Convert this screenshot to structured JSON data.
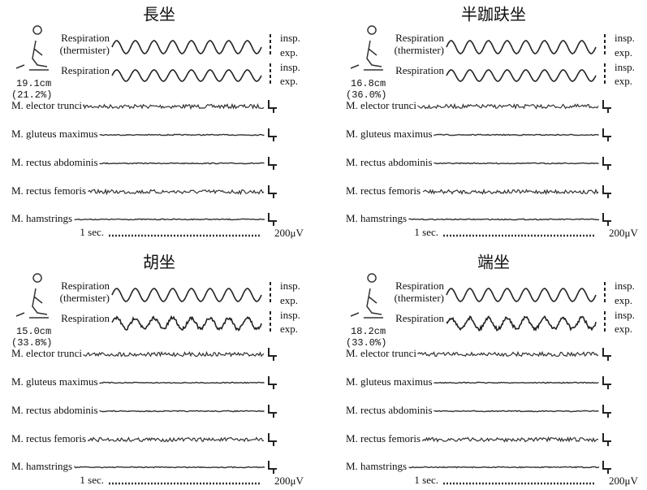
{
  "panels": [
    {
      "title": "長坐",
      "respiration_thermister": [
        "Respiration",
        "(thermister)"
      ],
      "respiration": "Respiration",
      "phase_labels": [
        [
          "insp.",
          "exp."
        ],
        [
          "insp.",
          "exp."
        ]
      ],
      "height": "19.1cm",
      "percent": "(21.2%)",
      "muscles": [
        "M. elector trunci",
        "M. gluteus maximus",
        "M. rectus abdominis",
        "M. rectus femoris",
        "M. hamstrings"
      ],
      "time_scale": "1 sec.",
      "amplitude_scale": "200μV"
    },
    {
      "title": "半跏趺坐",
      "respiration_thermister": [
        "Respiration",
        "(thermister)"
      ],
      "respiration": "Respiration",
      "phase_labels": [
        [
          "insp.",
          "exp."
        ],
        [
          "insp.",
          "exp."
        ]
      ],
      "height": "16.8cm",
      "percent": "(36.0%)",
      "muscles": [
        "M. elector trunci",
        "M. gluteus maximus",
        "M. rectus abdominis",
        "M. rectus femoris",
        "M. hamstrings"
      ],
      "time_scale": "1 sec.",
      "amplitude_scale": "200μV"
    },
    {
      "title": "胡坐",
      "respiration_thermister": [
        "Respiration",
        "(thermister)"
      ],
      "respiration": "Respiration",
      "phase_labels": [
        [
          "insp.",
          "exp."
        ],
        [
          "insp.",
          "exp."
        ]
      ],
      "height": "15.0cm",
      "percent": "(33.8%)",
      "muscles": [
        "M. elector trunci",
        "M. gluteus maximus",
        "M. rectus abdominis",
        "M. rectus femoris",
        "M. hamstrings"
      ],
      "time_scale": "1 sec.",
      "amplitude_scale": "200μV"
    },
    {
      "title": "端坐",
      "respiration_thermister": [
        "Respiration",
        "(thermister)"
      ],
      "respiration": "Respiration",
      "phase_labels": [
        [
          "insp.",
          "exp."
        ],
        [
          "insp.",
          "exp."
        ]
      ],
      "height": "18.2cm",
      "percent": "(33.0%)",
      "muscles": [
        "M. elector trunci",
        "M. gluteus maximus",
        "M. rectus abdominis",
        "M. rectus femoris",
        "M. hamstrings"
      ],
      "time_scale": "1 sec.",
      "amplitude_scale": "200μV"
    }
  ]
}
